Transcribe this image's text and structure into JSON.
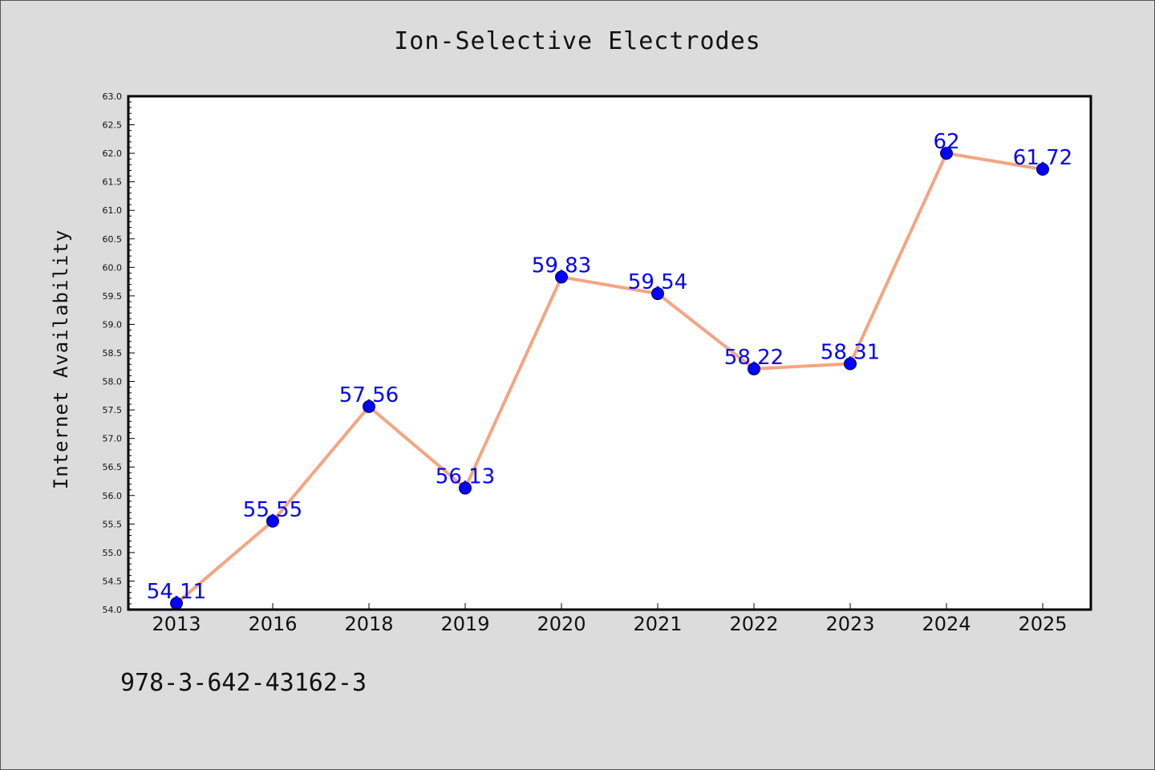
{
  "chart_data": {
    "type": "line",
    "title": "Ion-Selective Electrodes",
    "xlabel": "",
    "ylabel": "Internet Availability",
    "categories": [
      "2013",
      "2016",
      "2018",
      "2019",
      "2020",
      "2021",
      "2022",
      "2023",
      "2024",
      "2025"
    ],
    "series": [
      {
        "values": [
          54.11,
          55.55,
          57.56,
          56.13,
          59.83,
          59.54,
          58.22,
          58.31,
          62,
          61.72
        ],
        "labels": [
          "54.11",
          "55.55",
          "57.56",
          "56.13",
          "59.83",
          "59.54",
          "58.22",
          "58.31",
          "62",
          "61.72"
        ]
      }
    ],
    "ylim": [
      54.0,
      63.0
    ],
    "yticks": [
      "54.0",
      "54.5",
      "55.0",
      "55.5",
      "56.0",
      "56.5",
      "57.0",
      "57.5",
      "58.0",
      "58.5",
      "59.0",
      "59.5",
      "60.0",
      "60.5",
      "61.0",
      "61.5",
      "62.0",
      "62.5",
      "63.0"
    ],
    "grid": false,
    "colors": {
      "line": "#f4a582",
      "marker": "#0000ff",
      "data_label": "#0000ff",
      "background": "#dcdcdc",
      "plot_area": "#ffffff"
    }
  },
  "footer": {
    "isbn": "978-3-642-43162-3"
  }
}
